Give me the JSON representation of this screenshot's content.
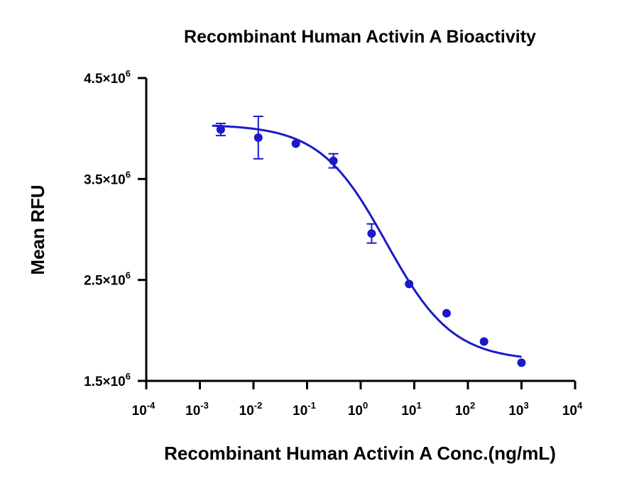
{
  "chart_data": {
    "type": "scatter",
    "title": "Recombinant Human Activin A Bioactivity",
    "xlabel": "Recombinant Human Activin A Conc.(ng/mL)",
    "ylabel": "Mean RFU",
    "xscale": "log",
    "xlim": [
      0.0001,
      10000
    ],
    "ylim": [
      1500000,
      4500000
    ],
    "x_ticks": [
      {
        "base": "10",
        "exp": "-4",
        "value": 0.0001
      },
      {
        "base": "10",
        "exp": "-3",
        "value": 0.001
      },
      {
        "base": "10",
        "exp": "-2",
        "value": 0.01
      },
      {
        "base": "10",
        "exp": "-1",
        "value": 0.1
      },
      {
        "base": "10",
        "exp": "0",
        "value": 1
      },
      {
        "base": "10",
        "exp": "1",
        "value": 10
      },
      {
        "base": "10",
        "exp": "2",
        "value": 100
      },
      {
        "base": "10",
        "exp": "3",
        "value": 1000
      },
      {
        "base": "10",
        "exp": "4",
        "value": 10000
      }
    ],
    "y_ticks": [
      {
        "base": "1.5×10",
        "exp": "6",
        "value": 1500000
      },
      {
        "base": "2.5×10",
        "exp": "6",
        "value": 2500000
      },
      {
        "base": "3.5×10",
        "exp": "6",
        "value": 3500000
      },
      {
        "base": "4.5×10",
        "exp": "6",
        "value": 4500000
      }
    ],
    "series": [
      {
        "name": "Mean RFU",
        "color": "#1a1ac8",
        "x": [
          0.00245,
          0.0123,
          0.0617,
          0.31,
          1.6,
          8,
          40,
          200,
          1000
        ],
        "y": [
          3990000,
          3910000,
          3850000,
          3680000,
          2960000,
          2460000,
          2170000,
          1890000,
          1680000
        ],
        "error": [
          60000,
          210000,
          15000,
          70000,
          95000,
          15000,
          15000,
          15000,
          10000
        ]
      }
    ],
    "fit": {
      "model": "4PL",
      "top": 4040000,
      "bottom": 1700000,
      "ec50": 3.0,
      "hill": 0.7,
      "x_range": [
        0.0017,
        1000
      ],
      "color": "#1a1ac8"
    },
    "grid": false,
    "legend": "none"
  }
}
